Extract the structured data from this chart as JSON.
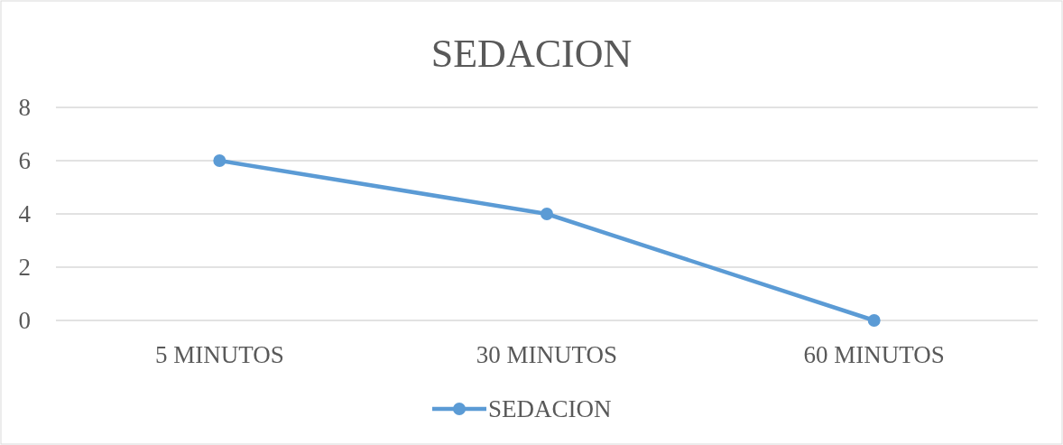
{
  "chart_data": {
    "type": "line",
    "title": "SEDACION",
    "categories": [
      "5 MINUTOS",
      "30 MINUTOS",
      "60 MINUTOS"
    ],
    "series": [
      {
        "name": "SEDACION",
        "color": "#5b9bd5",
        "values": [
          6,
          4,
          0
        ]
      }
    ],
    "ylim": [
      0,
      8
    ],
    "yticks": [
      0,
      2,
      4,
      6,
      8
    ],
    "grid": "y",
    "legend": "bottom",
    "marker": "circle",
    "line_style": "solid"
  }
}
